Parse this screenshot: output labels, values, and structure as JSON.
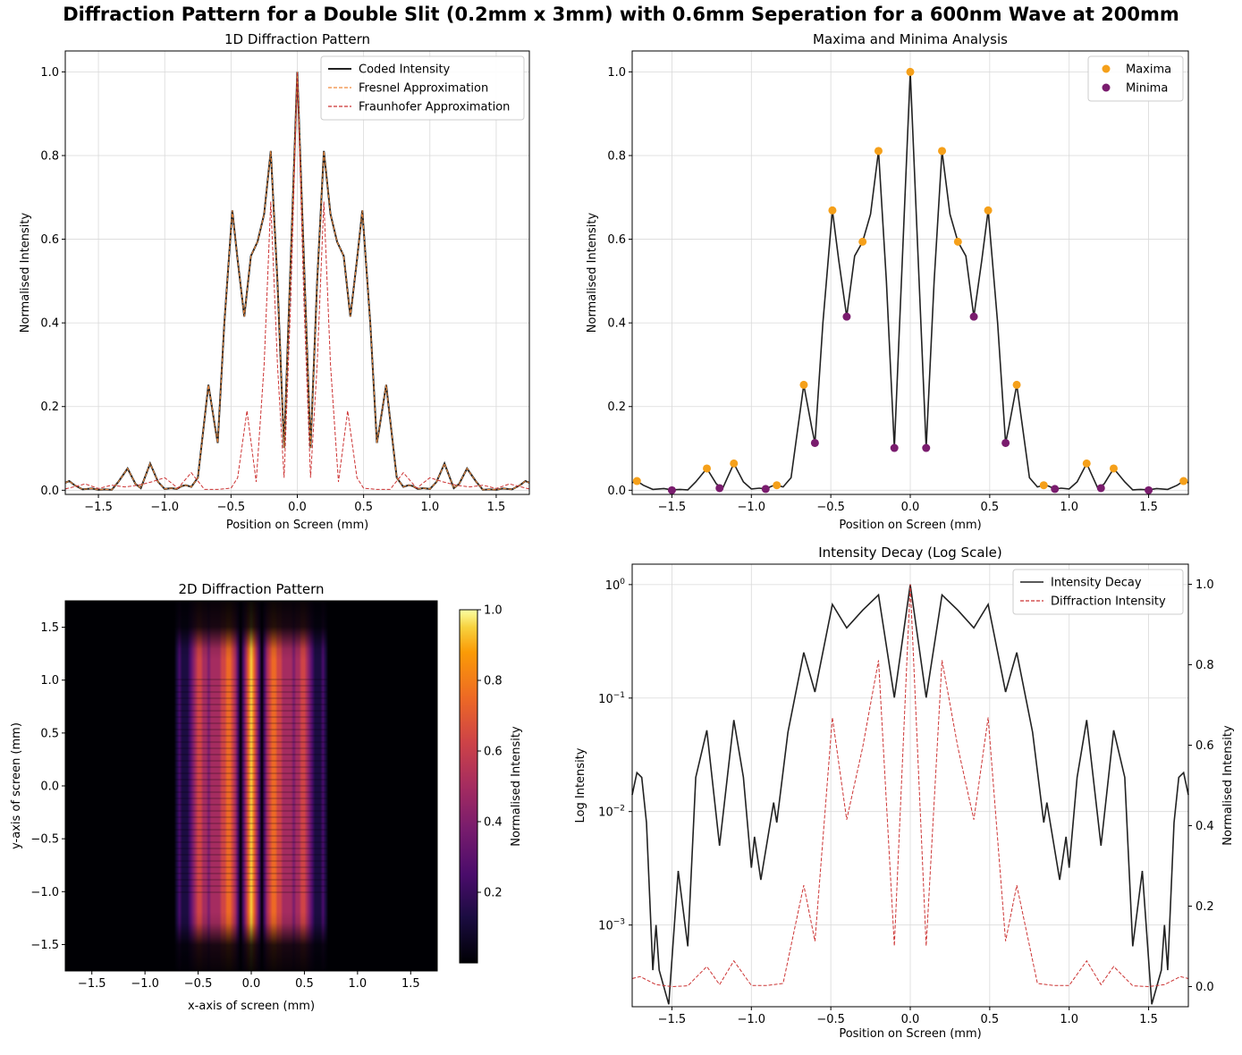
{
  "suptitle": "Diffraction Pattern for a Double Slit (0.2mm x 3mm) with 0.6mm Seperation for a 600nm Wave at 200mm",
  "colors": {
    "coded": "#222222",
    "fresnel": "#f08a3c",
    "fraunhofer": "#cc3333",
    "maxima": "#f5a01a",
    "minima": "#7a1c6e",
    "grid": "#d9d9d9"
  },
  "chart_data": [
    {
      "type": "line",
      "title": "1D Diffraction Pattern",
      "xlabel": "Position on Screen (mm)",
      "ylabel": "Normalised Intensity",
      "xlim": [
        -1.75,
        1.75
      ],
      "ylim": [
        -0.01,
        1.05
      ],
      "xticks": [
        -1.5,
        -1.0,
        -0.5,
        0.0,
        0.5,
        1.0,
        1.5
      ],
      "yticks": [
        0.0,
        0.2,
        0.4,
        0.6,
        0.8,
        1.0
      ],
      "grid": true,
      "legend": "top-right",
      "series": [
        {
          "name": "Coded Intensity",
          "style": "solid"
        },
        {
          "name": "Fresnel Approximation",
          "style": "dashed"
        },
        {
          "name": "Fraunhofer Approximation",
          "style": "dashed"
        }
      ],
      "coded_points": [
        [
          -1.75,
          0.018
        ],
        [
          -1.72,
          0.022
        ],
        [
          -1.68,
          0.012
        ],
        [
          -1.62,
          0.002
        ],
        [
          -1.55,
          0.004
        ],
        [
          -1.5,
          0.001
        ],
        [
          -1.45,
          0.002
        ],
        [
          -1.4,
          0.001
        ],
        [
          -1.35,
          0.02
        ],
        [
          -1.28,
          0.052
        ],
        [
          -1.22,
          0.015
        ],
        [
          -1.18,
          0.005
        ],
        [
          -1.11,
          0.064
        ],
        [
          -1.05,
          0.02
        ],
        [
          -1.0,
          0.003
        ],
        [
          -0.95,
          0.005
        ],
        [
          -0.91,
          0.003
        ],
        [
          -0.87,
          0.01
        ],
        [
          -0.84,
          0.012
        ],
        [
          -0.8,
          0.008
        ],
        [
          -0.75,
          0.03
        ],
        [
          -0.67,
          0.252
        ],
        [
          -0.62,
          0.15
        ],
        [
          -0.6,
          0.113
        ],
        [
          -0.55,
          0.4
        ],
        [
          -0.49,
          0.669
        ],
        [
          -0.45,
          0.55
        ],
        [
          -0.4,
          0.415
        ],
        [
          -0.35,
          0.56
        ],
        [
          -0.3,
          0.594
        ],
        [
          -0.25,
          0.66
        ],
        [
          -0.2,
          0.811
        ],
        [
          -0.15,
          0.5
        ],
        [
          -0.1,
          0.101
        ],
        [
          -0.05,
          0.55
        ],
        [
          0.0,
          1.0
        ],
        [
          0.05,
          0.55
        ],
        [
          0.1,
          0.101
        ],
        [
          0.15,
          0.5
        ],
        [
          0.2,
          0.811
        ],
        [
          0.25,
          0.66
        ],
        [
          0.3,
          0.594
        ],
        [
          0.35,
          0.56
        ],
        [
          0.4,
          0.415
        ],
        [
          0.45,
          0.55
        ],
        [
          0.49,
          0.669
        ],
        [
          0.55,
          0.4
        ],
        [
          0.6,
          0.113
        ],
        [
          0.62,
          0.15
        ],
        [
          0.67,
          0.252
        ],
        [
          0.75,
          0.03
        ],
        [
          0.8,
          0.008
        ],
        [
          0.84,
          0.012
        ],
        [
          0.87,
          0.01
        ],
        [
          0.91,
          0.003
        ],
        [
          0.95,
          0.005
        ],
        [
          1.0,
          0.003
        ],
        [
          1.05,
          0.02
        ],
        [
          1.11,
          0.064
        ],
        [
          1.18,
          0.005
        ],
        [
          1.22,
          0.015
        ],
        [
          1.28,
          0.052
        ],
        [
          1.35,
          0.02
        ],
        [
          1.4,
          0.001
        ],
        [
          1.45,
          0.002
        ],
        [
          1.5,
          0.001
        ],
        [
          1.55,
          0.004
        ],
        [
          1.62,
          0.002
        ],
        [
          1.68,
          0.012
        ],
        [
          1.72,
          0.022
        ],
        [
          1.75,
          0.018
        ]
      ],
      "fraunhofer_points": [
        [
          -1.75,
          0.003
        ],
        [
          -1.6,
          0.015
        ],
        [
          -1.5,
          0.004
        ],
        [
          -1.4,
          0.012
        ],
        [
          -1.3,
          0.008
        ],
        [
          -1.2,
          0.012
        ],
        [
          -1.1,
          0.02
        ],
        [
          -1.0,
          0.03
        ],
        [
          -0.9,
          0.005
        ],
        [
          -0.8,
          0.042
        ],
        [
          -0.7,
          0.002
        ],
        [
          -0.6,
          0.002
        ],
        [
          -0.5,
          0.005
        ],
        [
          -0.45,
          0.03
        ],
        [
          -0.38,
          0.19
        ],
        [
          -0.31,
          0.02
        ],
        [
          -0.25,
          0.3
        ],
        [
          -0.2,
          0.69
        ],
        [
          -0.15,
          0.3
        ],
        [
          -0.1,
          0.03
        ],
        [
          -0.05,
          0.45
        ],
        [
          0.0,
          1.0
        ],
        [
          0.05,
          0.45
        ],
        [
          0.1,
          0.03
        ],
        [
          0.15,
          0.3
        ],
        [
          0.2,
          0.69
        ],
        [
          0.25,
          0.3
        ],
        [
          0.31,
          0.02
        ],
        [
          0.38,
          0.19
        ],
        [
          0.45,
          0.03
        ],
        [
          0.5,
          0.005
        ],
        [
          0.6,
          0.002
        ],
        [
          0.7,
          0.002
        ],
        [
          0.8,
          0.042
        ],
        [
          0.9,
          0.005
        ],
        [
          1.0,
          0.03
        ],
        [
          1.1,
          0.02
        ],
        [
          1.2,
          0.012
        ],
        [
          1.3,
          0.008
        ],
        [
          1.4,
          0.012
        ],
        [
          1.5,
          0.004
        ],
        [
          1.6,
          0.015
        ],
        [
          1.75,
          0.003
        ]
      ]
    },
    {
      "type": "scatter",
      "title": "Maxima and Minima Analysis",
      "xlabel": "Position on Screen (mm)",
      "ylabel": "Normalised Intensity",
      "xlim": [
        -1.75,
        1.75
      ],
      "ylim": [
        -0.01,
        1.05
      ],
      "xticks": [
        -1.5,
        -1.0,
        -0.5,
        0.0,
        0.5,
        1.0,
        1.5
      ],
      "yticks": [
        0.0,
        0.2,
        0.4,
        0.6,
        0.8,
        1.0
      ],
      "grid": true,
      "legend": "top-right",
      "series": [
        {
          "name": "Maxima",
          "points": [
            [
              -1.72,
              0.022
            ],
            [
              -1.28,
              0.052
            ],
            [
              -1.11,
              0.064
            ],
            [
              -0.84,
              0.012
            ],
            [
              -0.67,
              0.252
            ],
            [
              -0.49,
              0.669
            ],
            [
              -0.3,
              0.594
            ],
            [
              -0.2,
              0.811
            ],
            [
              0.0,
              1.0
            ],
            [
              0.2,
              0.811
            ],
            [
              0.3,
              0.594
            ],
            [
              0.49,
              0.669
            ],
            [
              0.67,
              0.252
            ],
            [
              0.84,
              0.012
            ],
            [
              1.11,
              0.064
            ],
            [
              1.28,
              0.052
            ],
            [
              1.72,
              0.022
            ]
          ]
        },
        {
          "name": "Minima",
          "points": [
            [
              -1.5,
              0.0
            ],
            [
              -1.2,
              0.005
            ],
            [
              -0.91,
              0.003
            ],
            [
              -0.6,
              0.113
            ],
            [
              -0.4,
              0.415
            ],
            [
              -0.1,
              0.101
            ],
            [
              0.1,
              0.101
            ],
            [
              0.4,
              0.415
            ],
            [
              0.6,
              0.113
            ],
            [
              0.91,
              0.003
            ],
            [
              1.2,
              0.005
            ],
            [
              1.5,
              0.0
            ]
          ]
        }
      ]
    },
    {
      "type": "heatmap",
      "title": "2D Diffraction Pattern",
      "xlabel": "x-axis of screen (mm)",
      "ylabel": "y-axis of screen (mm)",
      "xlim": [
        -1.75,
        1.75
      ],
      "ylim": [
        -1.75,
        1.75
      ],
      "xticks": [
        -1.5,
        -1.0,
        -0.5,
        0.0,
        0.5,
        1.0,
        1.5
      ],
      "yticks": [
        -1.5,
        -1.0,
        -0.5,
        0.0,
        0.5,
        1.0,
        1.5
      ],
      "colormap": "inferno",
      "colorbar_label": "Normalised Intensity",
      "colorbar_ticks": [
        0.2,
        0.4,
        0.6,
        0.8,
        1.0
      ]
    },
    {
      "type": "line",
      "title": "Intensity Decay (Log Scale)",
      "xlabel": "Position on Screen (mm)",
      "ylabel": "Log Intensity",
      "ylabel_right": "Normalised Intensity",
      "xlim": [
        -1.75,
        1.75
      ],
      "y_scale": "log",
      "ylim_log_exp": [
        -3.72,
        0.18
      ],
      "ylim_right": [
        -0.05,
        1.05
      ],
      "xticks": [
        -1.5,
        -1.0,
        -0.5,
        0.0,
        0.5,
        1.0,
        1.5
      ],
      "yticks_log": [
        "10^0",
        "10^-1",
        "10^-2",
        "10^-3"
      ],
      "yticks_right": [
        0.0,
        0.2,
        0.4,
        0.6,
        0.8,
        1.0
      ],
      "grid": true,
      "legend": "top-right",
      "series": [
        {
          "name": "Intensity Decay",
          "style": "solid"
        },
        {
          "name": "Diffraction Intensity",
          "style": "dashed"
        }
      ],
      "log_points": [
        [
          -1.75,
          0.014
        ],
        [
          -1.72,
          0.022
        ],
        [
          -1.69,
          0.02
        ],
        [
          -1.66,
          0.008
        ],
        [
          -1.62,
          0.0004
        ],
        [
          -1.6,
          0.001
        ],
        [
          -1.58,
          0.0004
        ],
        [
          -1.52,
          0.0002
        ],
        [
          -1.46,
          0.003
        ],
        [
          -1.4,
          0.00065
        ],
        [
          -1.35,
          0.02
        ],
        [
          -1.28,
          0.052
        ],
        [
          -1.2,
          0.005
        ],
        [
          -1.11,
          0.064
        ],
        [
          -1.05,
          0.02
        ],
        [
          -1.0,
          0.0032
        ],
        [
          -0.98,
          0.006
        ],
        [
          -0.94,
          0.0025
        ],
        [
          -0.86,
          0.012
        ],
        [
          -0.84,
          0.008
        ],
        [
          -0.77,
          0.05
        ],
        [
          -0.67,
          0.252
        ],
        [
          -0.6,
          0.113
        ],
        [
          -0.49,
          0.669
        ],
        [
          -0.4,
          0.415
        ],
        [
          -0.3,
          0.594
        ],
        [
          -0.2,
          0.811
        ],
        [
          -0.1,
          0.101
        ],
        [
          0.0,
          1.0
        ],
        [
          0.1,
          0.101
        ],
        [
          0.2,
          0.811
        ],
        [
          0.3,
          0.594
        ],
        [
          0.4,
          0.415
        ],
        [
          0.49,
          0.669
        ],
        [
          0.6,
          0.113
        ],
        [
          0.67,
          0.252
        ],
        [
          0.77,
          0.05
        ],
        [
          0.84,
          0.008
        ],
        [
          0.86,
          0.012
        ],
        [
          0.94,
          0.0025
        ],
        [
          0.98,
          0.006
        ],
        [
          1.0,
          0.0032
        ],
        [
          1.05,
          0.02
        ],
        [
          1.11,
          0.064
        ],
        [
          1.2,
          0.005
        ],
        [
          1.28,
          0.052
        ],
        [
          1.35,
          0.02
        ],
        [
          1.4,
          0.00065
        ],
        [
          1.46,
          0.003
        ],
        [
          1.52,
          0.0002
        ],
        [
          1.58,
          0.0004
        ],
        [
          1.6,
          0.001
        ],
        [
          1.62,
          0.0004
        ],
        [
          1.66,
          0.008
        ],
        [
          1.69,
          0.02
        ],
        [
          1.72,
          0.022
        ],
        [
          1.75,
          0.014
        ]
      ],
      "diffraction_points": [
        [
          -1.75,
          0.02
        ],
        [
          -1.7,
          0.025
        ],
        [
          -1.6,
          0.005
        ],
        [
          -1.5,
          0.0
        ],
        [
          -1.4,
          0.002
        ],
        [
          -1.28,
          0.05
        ],
        [
          -1.2,
          0.005
        ],
        [
          -1.11,
          0.064
        ],
        [
          -1.0,
          0.003
        ],
        [
          -0.9,
          0.003
        ],
        [
          -0.8,
          0.008
        ],
        [
          -0.67,
          0.252
        ],
        [
          -0.6,
          0.113
        ],
        [
          -0.49,
          0.669
        ],
        [
          -0.4,
          0.415
        ],
        [
          -0.3,
          0.594
        ],
        [
          -0.2,
          0.811
        ],
        [
          -0.1,
          0.101
        ],
        [
          0.0,
          1.0
        ],
        [
          0.1,
          0.101
        ],
        [
          0.2,
          0.811
        ],
        [
          0.3,
          0.594
        ],
        [
          0.4,
          0.415
        ],
        [
          0.49,
          0.669
        ],
        [
          0.6,
          0.113
        ],
        [
          0.67,
          0.252
        ],
        [
          0.8,
          0.008
        ],
        [
          0.9,
          0.003
        ],
        [
          1.0,
          0.003
        ],
        [
          1.11,
          0.064
        ],
        [
          1.2,
          0.005
        ],
        [
          1.28,
          0.05
        ],
        [
          1.4,
          0.002
        ],
        [
          1.5,
          0.0
        ],
        [
          1.6,
          0.005
        ],
        [
          1.7,
          0.025
        ],
        [
          1.75,
          0.02
        ]
      ]
    }
  ]
}
